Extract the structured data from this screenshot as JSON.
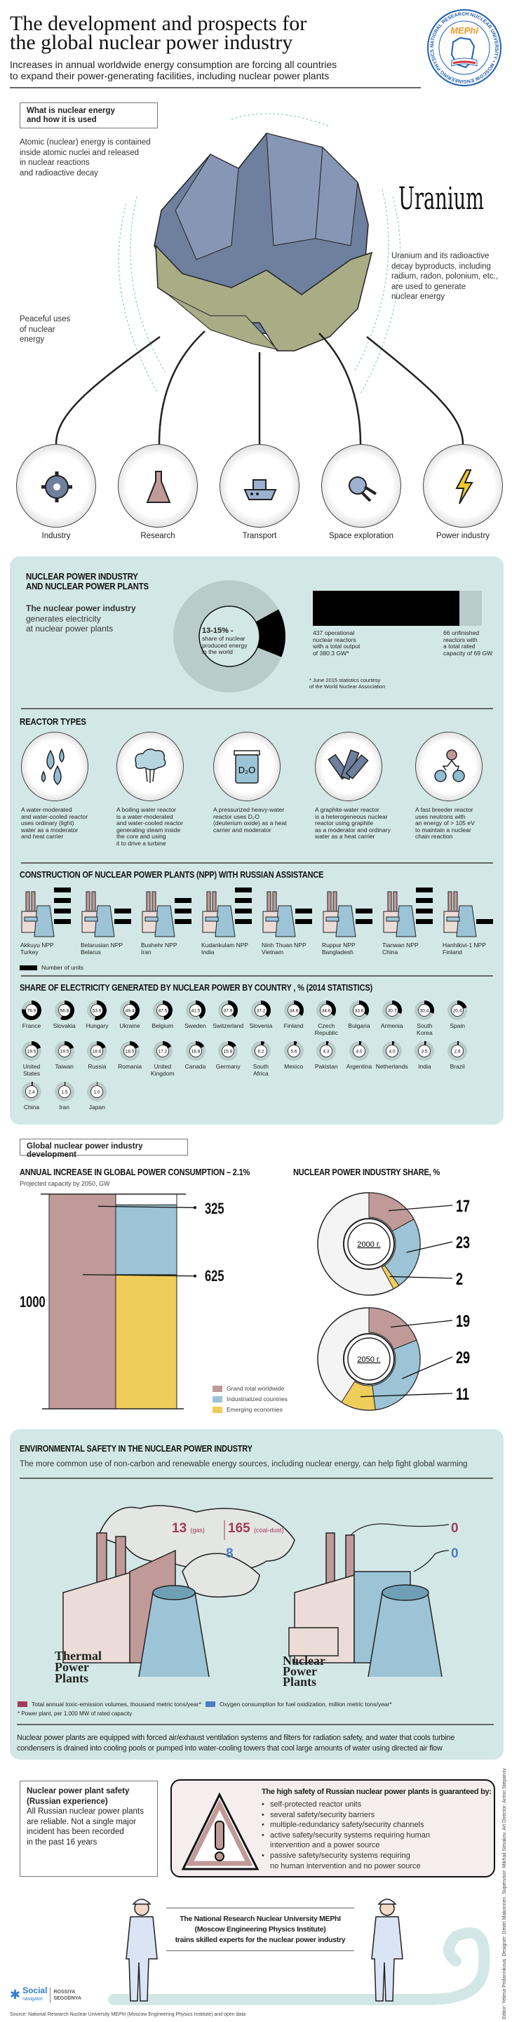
{
  "header": {
    "title_lines": [
      "The development and prospects for",
      "the global nuclear power industry"
    ],
    "subtitle_lines": [
      "Increases in annual worldwide energy consumption are forcing all countries",
      "to expand their power-generating facilities, including nuclear power plants"
    ],
    "logo": {
      "name": "MEPhI",
      "ring_text": "NATIONAL RESEARCH NUCLEAR UNIVERSITY • MOSCOW ENGINEERING PHYSICS INSTITUTE • MEPhI •"
    }
  },
  "intro": {
    "box_lines": [
      "What is nuclear energy",
      "and how it is used"
    ],
    "atomic_lines": [
      "Atomic (nuclear) energy is contained",
      "inside atomic nuclei and released",
      "in nuclear reactions",
      "and radioactive decay"
    ],
    "uranium_label": "Uranium",
    "uranium_lines": [
      "Uranium and its radioactive",
      "decay byproducts, including",
      "radium, radon, polonium, etc.,",
      "are used to generate",
      "nuclear energy"
    ],
    "peaceful_lines": [
      "Peaceful uses",
      "of nuclear",
      "energy"
    ],
    "uses": [
      {
        "label": "Industry",
        "icon": "gear-icon"
      },
      {
        "label": "Research",
        "icon": "flask-icon"
      },
      {
        "label": "Transport",
        "icon": "ship-icon"
      },
      {
        "label": "Space exploration",
        "icon": "satellite-icon"
      },
      {
        "label": "Power industry",
        "icon": "lightning-icon"
      }
    ]
  },
  "npi": {
    "title_lines": [
      "NUCLEAR POWER INDUSTRY",
      "AND NUCLEAR POWER PLANTS"
    ],
    "lead_bold": "The nuclear power industry",
    "lead_lines": [
      "generates electricity",
      "at nuclear power plants"
    ],
    "share": {
      "label": "13-15% -",
      "desc_lines": [
        "share of nuclear",
        "produced energy",
        "in the world"
      ],
      "value_percent": 14
    },
    "operational": {
      "count": 437,
      "lines": [
        "437 operational",
        "nuclear reactors",
        "with a total output",
        "of 380.3 GW*"
      ]
    },
    "unfinished": {
      "count": 66,
      "lines": [
        "66 unfinished",
        "reactors with",
        "a total rated",
        "capacity of 69 GW"
      ]
    },
    "footnote_lines": [
      "* June 2015 statistics courtesy",
      "of the World Nuclear Association"
    ]
  },
  "reactors": {
    "title": "REACTOR TYPES",
    "items": [
      {
        "icon": "water-drops-icon",
        "lines": [
          "A water-moderated",
          "and water-cooled reactor",
          "uses ordinary (light)",
          "water as a moderator",
          "and heat carrier"
        ]
      },
      {
        "icon": "steam-cloud-icon",
        "lines": [
          "A boiling water reactor",
          "is a water-moderated",
          "and water-cooled reactor",
          "generating steam inside",
          "the core and using",
          "it to drive a turbine"
        ]
      },
      {
        "icon": "d2o-jar-icon",
        "jar_label": "D₂O",
        "lines": [
          "A pressurized heavy-water",
          "reactor uses D₂O",
          "(deuterium oxide) as a heat",
          "carrier and moderator"
        ]
      },
      {
        "icon": "graphite-blocks-icon",
        "lines": [
          "A graphite-water reactor",
          "is a heterogeneous nuclear",
          "reactor using graphite",
          "as a moderator and ordinary",
          "water as a heat carrier"
        ]
      },
      {
        "icon": "neutron-fission-icon",
        "lines": [
          "A fast breeder reactor",
          "uses neutrons with",
          "an energy of > 105 eV",
          "to maintain a nuclear",
          "chain reaction"
        ]
      }
    ]
  },
  "construction": {
    "title": "CONSTRUCTION OF NUCLEAR POWER PLANTS (NPP) WITH RUSSIAN ASSISTANCE",
    "legend": "Number of units",
    "plants": [
      {
        "name": "Akkuyu NPP",
        "country": "Turkey",
        "units": 4
      },
      {
        "name": "Belarusian NPP",
        "country": "Belarus",
        "units": 2
      },
      {
        "name": "Bushehr NPP",
        "country": "Iran",
        "units": 3
      },
      {
        "name": "Kudankulam NPP",
        "country": "India",
        "units": 4
      },
      {
        "name": "Ninh Thuan NPP",
        "country": "Vietnam",
        "units": 2
      },
      {
        "name": "Ruppur NPP",
        "country": "Bangladesh",
        "units": 2
      },
      {
        "name": "Tianwan NPP",
        "country": "China",
        "units": 4
      },
      {
        "name": "Hanhikivi-1 NPP",
        "country": "Finland",
        "units": 1
      }
    ]
  },
  "share_by_country": {
    "title": "SHARE OF ELECTRICITY GENERATED BY NUCLEAR POWER BY COUNTRY , % (2014 STATISTICS)",
    "countries": [
      {
        "name": [
          "France"
        ],
        "value": "76.9"
      },
      {
        "name": [
          "Slovakia"
        ],
        "value": "56.8"
      },
      {
        "name": [
          "Hungary"
        ],
        "value": "53.6"
      },
      {
        "name": [
          "Ukraine"
        ],
        "value": "49.4"
      },
      {
        "name": [
          "Belgium"
        ],
        "value": "47.5"
      },
      {
        "name": [
          "Sweden"
        ],
        "value": "41.5"
      },
      {
        "name": [
          "Switzerland"
        ],
        "value": "37.9"
      },
      {
        "name": [
          "Slovenia"
        ],
        "value": "37.2"
      },
      {
        "name": [
          "Finland"
        ],
        "value": "34.6"
      },
      {
        "name": [
          "Czech",
          "Republic"
        ],
        "value": "34.6"
      },
      {
        "name": [
          "Bulgaria"
        ],
        "value": "33.6"
      },
      {
        "name": [
          "Armenia"
        ],
        "value": "30.7"
      },
      {
        "name": [
          "South",
          "Korea"
        ],
        "value": "30.4"
      },
      {
        "name": [
          "Spain"
        ],
        "value": "20.4"
      },
      {
        "name": [
          "United",
          "States"
        ],
        "value": "19.5"
      },
      {
        "name": [
          "Taiwan"
        ],
        "value": "19.5"
      },
      {
        "name": [
          "Russia"
        ],
        "value": "18.6"
      },
      {
        "name": [
          "Romania"
        ],
        "value": "18.5"
      },
      {
        "name": [
          "United",
          "Kingdom"
        ],
        "value": "17.2"
      },
      {
        "name": [
          "Canada"
        ],
        "value": "16.8"
      },
      {
        "name": [
          "Germany"
        ],
        "value": "15.8"
      },
      {
        "name": [
          "South",
          "Africa"
        ],
        "value": "6.2"
      },
      {
        "name": [
          "Mexico"
        ],
        "value": "5.6"
      },
      {
        "name": [
          "Pakistan"
        ],
        "value": "4.3"
      },
      {
        "name": [
          "Argentina"
        ],
        "value": "4.0"
      },
      {
        "name": [
          "Netherlands"
        ],
        "value": "4.0"
      },
      {
        "name": [
          "India"
        ],
        "value": "3.5"
      },
      {
        "name": [
          "Brazil"
        ],
        "value": "2.9"
      },
      {
        "name": [
          "China"
        ],
        "value": "2.4"
      },
      {
        "name": [
          "Iran"
        ],
        "value": "1.5"
      },
      {
        "name": [
          "Japan"
        ],
        "value": "1.0"
      }
    ]
  },
  "development": {
    "box_title": "Global nuclear power industry development",
    "consumption": {
      "title": "ANNUAL INCREASE IN GLOBAL POWER CONSUMPTION – 2.1%",
      "subtitle": "Projected capacity by 2050, GW",
      "grand_total": 1000,
      "industrialized": 325,
      "emerging": 625,
      "labels": {
        "grand_total": "1000",
        "industrialized": "325",
        "emerging": "625"
      }
    },
    "share": {
      "title": "NUCLEAR POWER INDUSTRY SHARE, %",
      "years": [
        {
          "label": "2000 г.",
          "grand_total": 17,
          "industrialized": 23,
          "emerging": 2
        },
        {
          "label": "2050 г.",
          "grand_total": 19,
          "industrialized": 29,
          "emerging": 11
        }
      ]
    },
    "legend": [
      {
        "label": "Grand total worldwide",
        "color": "#c09a98"
      },
      {
        "label": "Industrialized countries",
        "color": "#9cc4d6"
      },
      {
        "label": "Emerging economies",
        "color": "#eecd5a"
      }
    ]
  },
  "environment": {
    "title": "ENVIRONMENTAL SAFETY IN THE NUCLEAR POWER INDUSTRY",
    "subtitle": "The more common use of non-carbon and renewable energy sources, including nuclear energy, can help fight global warming",
    "thermal": {
      "label_lines": [
        "Thermal",
        "Power",
        "Plants"
      ],
      "toxic_gas": "13",
      "gas_unit": "(gas)",
      "toxic_coal": "165",
      "coal_unit": "(coal-dust)",
      "oxygen": "8"
    },
    "nuclear": {
      "label_lines": [
        "Nuclear",
        "Power",
        "Plants"
      ],
      "toxic": "0",
      "oxygen": "0"
    },
    "legend": [
      {
        "label": "Total annual toxic-emission volumes, thousand metric tons/year*",
        "color": "#a33a5e"
      },
      {
        "label": "Oxygen consumption for fuel oxidization, million metric tons/year*",
        "color": "#4a7fbf"
      }
    ],
    "footnote": "* Power plant, per 1,000 MW of rated capacity",
    "paragraph_lines": [
      "Nuclear power plants are equipped with forced air/exhaust ventilation systems and filters for radiation safety, and water that cools turbine",
      "condensers is drained into cooling pools or pumped into water-cooling towers that cool large amounts of water using directed air flow"
    ]
  },
  "safety": {
    "box_title_lines": [
      "Nuclear power plant safety",
      "(Russian experience)"
    ],
    "box_lines": [
      "All Russian nuclear power plants",
      "are reliable. Not a single major",
      "incident has been recorded",
      "in the past 16 years"
    ],
    "heading": "The high safety of Russian nuclear power plants is guaranteed by:",
    "bullets": [
      "self-protected reactor units",
      "several safety/security barriers",
      "multiple-redundancy safety/security channels",
      "active safety/security systems requiring human|intervention and a power source",
      "passive safety/security systems requiring|no human intervention and no power source"
    ]
  },
  "footer": {
    "mephi_lines": [
      "The National Research Nuclear University MEPhI",
      "(Moscow Engineering Physics Institute)",
      "trains skilled experts for the nuclear power industry"
    ],
    "brand": {
      "social": "Social",
      "navigator": "navigator",
      "rossiya": "ROSSIYA",
      "segodnya": "SEGODNYA"
    },
    "source": "Source: National Research Nuclear University MEPhI (Moscow Engineering Physics Institute) and open data",
    "credits": "Editor: Yelena Pridannikova. Designer: Dmitri Makonnen. Supervisor: Mikhail Simakov. Art Director: Anton Stepanov"
  },
  "colors": {
    "panel": "#d3e8e6",
    "pink": "#c09a98",
    "blue": "#9cc4d6",
    "yellow": "#eecd5a",
    "toxic": "#a33a5e",
    "oxygen": "#4a7fbf",
    "rock": "#6f7f9e",
    "ore": "#a9ad86"
  }
}
